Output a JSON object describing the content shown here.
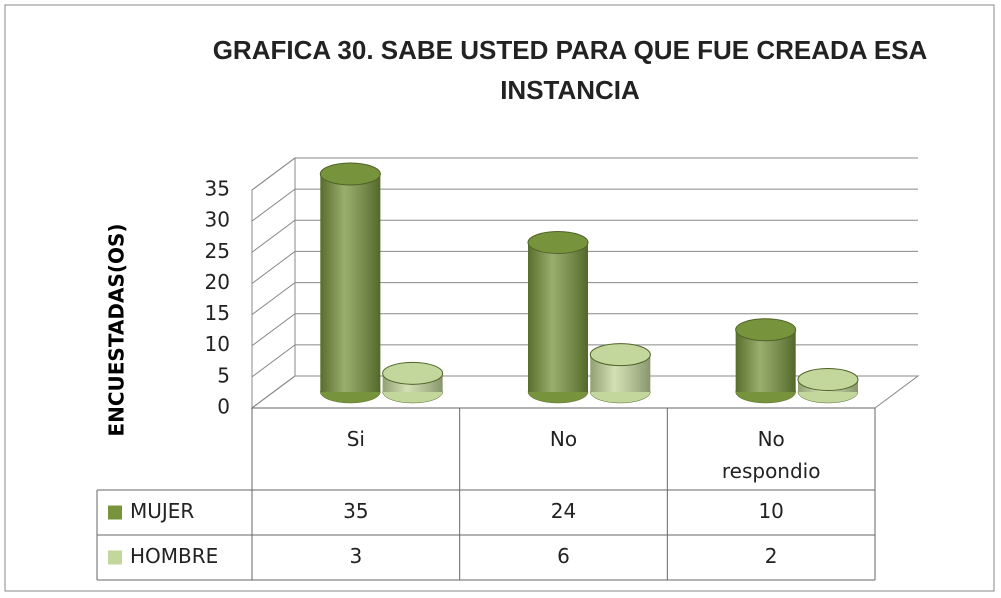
{
  "chart_data": {
    "type": "bar3d",
    "title": "GRAFICA 30. SABE USTED PARA QUE FUE CREADA ESA INSTANCIA",
    "y_label": "ENCUESTADAS(OS)",
    "categories": [
      "Si",
      "No",
      "No respondio"
    ],
    "series": [
      {
        "name": "MUJER",
        "color": "#77933c",
        "values": [
          35,
          24,
          10
        ]
      },
      {
        "name": "HOMBRE",
        "color": "#c3d69b",
        "values": [
          3,
          6,
          2
        ]
      }
    ],
    "ylim": [
      0,
      35
    ],
    "yticks": [
      0,
      5,
      10,
      15,
      20,
      25,
      30,
      35
    ],
    "grid": true
  }
}
